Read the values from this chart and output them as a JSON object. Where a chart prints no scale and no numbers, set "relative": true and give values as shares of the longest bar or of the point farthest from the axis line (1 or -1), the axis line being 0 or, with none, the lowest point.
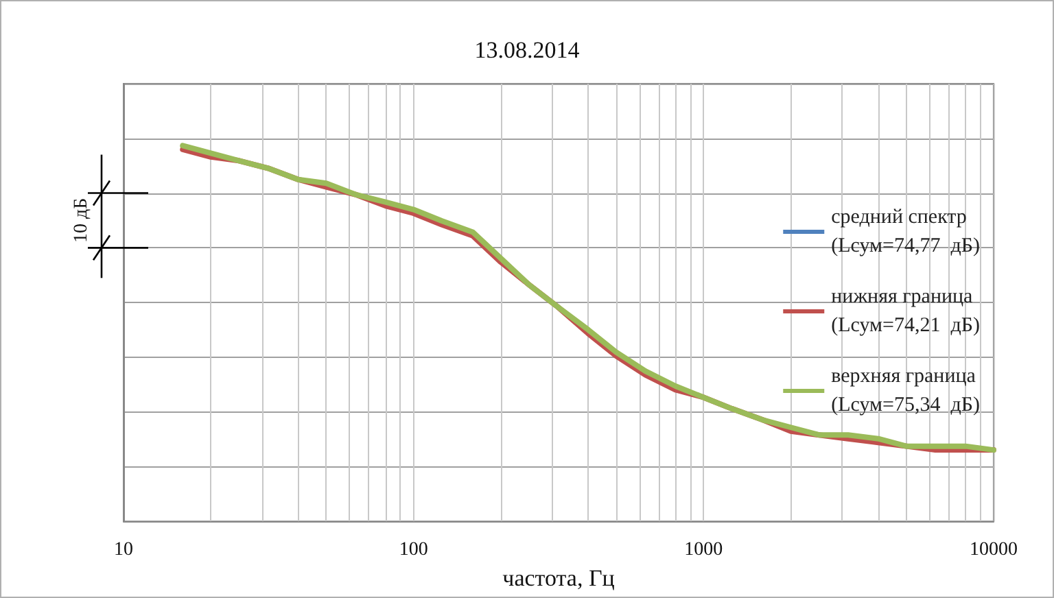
{
  "chart_data": {
    "type": "line",
    "title": "13.08.2014",
    "xlabel": "частота, Гц",
    "annotations": [
      "10 дБ"
    ],
    "relative": true,
    "log": "x",
    "grid": true,
    "legend": "right",
    "marker": "none",
    "line_style": "solid",
    "xlim": [
      10,
      10000
    ],
    "xticks": [
      10,
      100,
      1000,
      10000
    ],
    "x": [
      16,
      20,
      25,
      31.5,
      40,
      50,
      63,
      80,
      100,
      125,
      160,
      200,
      250,
      315,
      400,
      500,
      630,
      800,
      1000,
      1250,
      1600,
      2000,
      2500,
      3150,
      4000,
      5000,
      6300,
      8000,
      10000
    ],
    "series": [
      {
        "name": "средний спектр\n(Lсум=74,77  дБ)",
        "color": "#4f81bd",
        "values": [
          null,
          null,
          null,
          null,
          null,
          null,
          null,
          null,
          null,
          null,
          null,
          null,
          null,
          null,
          null,
          null,
          null,
          null,
          null,
          null,
          null,
          null,
          null,
          null,
          null,
          null,
          null,
          null,
          null
        ]
      },
      {
        "name": "нижняя граница\n(Lсум=74,21  дБ)",
        "color": "#c0504d",
        "values": [
          0.99,
          0.97,
          0.96,
          0.94,
          0.91,
          0.89,
          0.87,
          0.84,
          0.82,
          0.79,
          0.76,
          0.69,
          0.63,
          0.57,
          0.5,
          0.44,
          0.39,
          0.35,
          0.33,
          0.3,
          0.27,
          0.24,
          0.23,
          0.22,
          0.21,
          0.2,
          0.19,
          0.19,
          0.19
        ]
      },
      {
        "name": "верхняя граница\n(Lсум=75,34  дБ)",
        "color": "#9bbb59",
        "values": [
          1.0,
          0.98,
          0.96,
          0.94,
          0.91,
          0.9,
          0.87,
          0.85,
          0.83,
          0.8,
          0.77,
          0.7,
          0.63,
          0.57,
          0.51,
          0.45,
          0.4,
          0.36,
          0.33,
          0.3,
          0.27,
          0.25,
          0.23,
          0.23,
          0.22,
          0.2,
          0.2,
          0.2,
          0.19
        ]
      }
    ]
  }
}
